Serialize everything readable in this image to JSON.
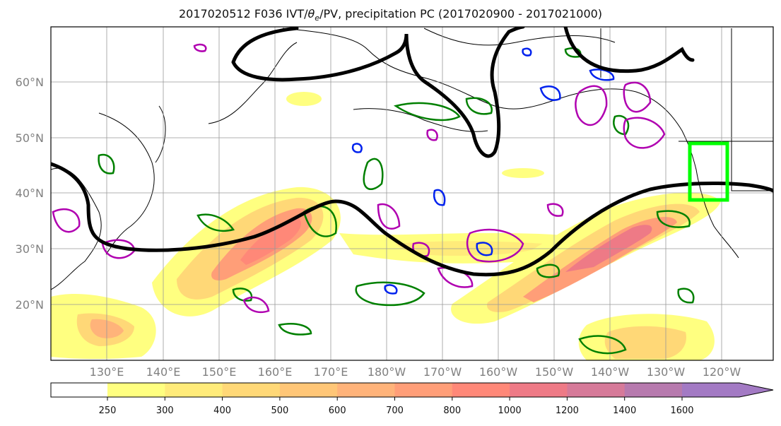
{
  "title": {
    "prefix": "2017020512 F036 IVT/",
    "theta": "θ",
    "theta_sub": "e",
    "suffix": "/PV, precipitation PC (2017020900 - 2017021000)"
  },
  "map": {
    "lat_labels": [
      "60°N",
      "50°N",
      "40°N",
      "30°N",
      "20°N"
    ],
    "lon_labels": [
      "130°E",
      "140°E",
      "150°E",
      "160°E",
      "170°E",
      "180°W",
      "170°W",
      "160°W",
      "150°W",
      "140°W",
      "130°W",
      "120°W"
    ]
  },
  "colorbar": {
    "ticks": [
      "250",
      "300",
      "400",
      "500",
      "600",
      "700",
      "800",
      "1000",
      "1200",
      "1400",
      "1600"
    ],
    "colors": [
      "#ffff80",
      "#ffeb7a",
      "#ffd877",
      "#ffc677",
      "#ffb37a",
      "#ff9e78",
      "#ff8878",
      "#ee7a86",
      "#d67a99",
      "#b77aae",
      "#a37ac4"
    ]
  },
  "colors": {
    "ivt_contour": "#000000",
    "theta_contour": "#008000",
    "pv_positive": "#b000b0",
    "pv_negative": "#0022ee",
    "box": "#00ff00"
  }
}
